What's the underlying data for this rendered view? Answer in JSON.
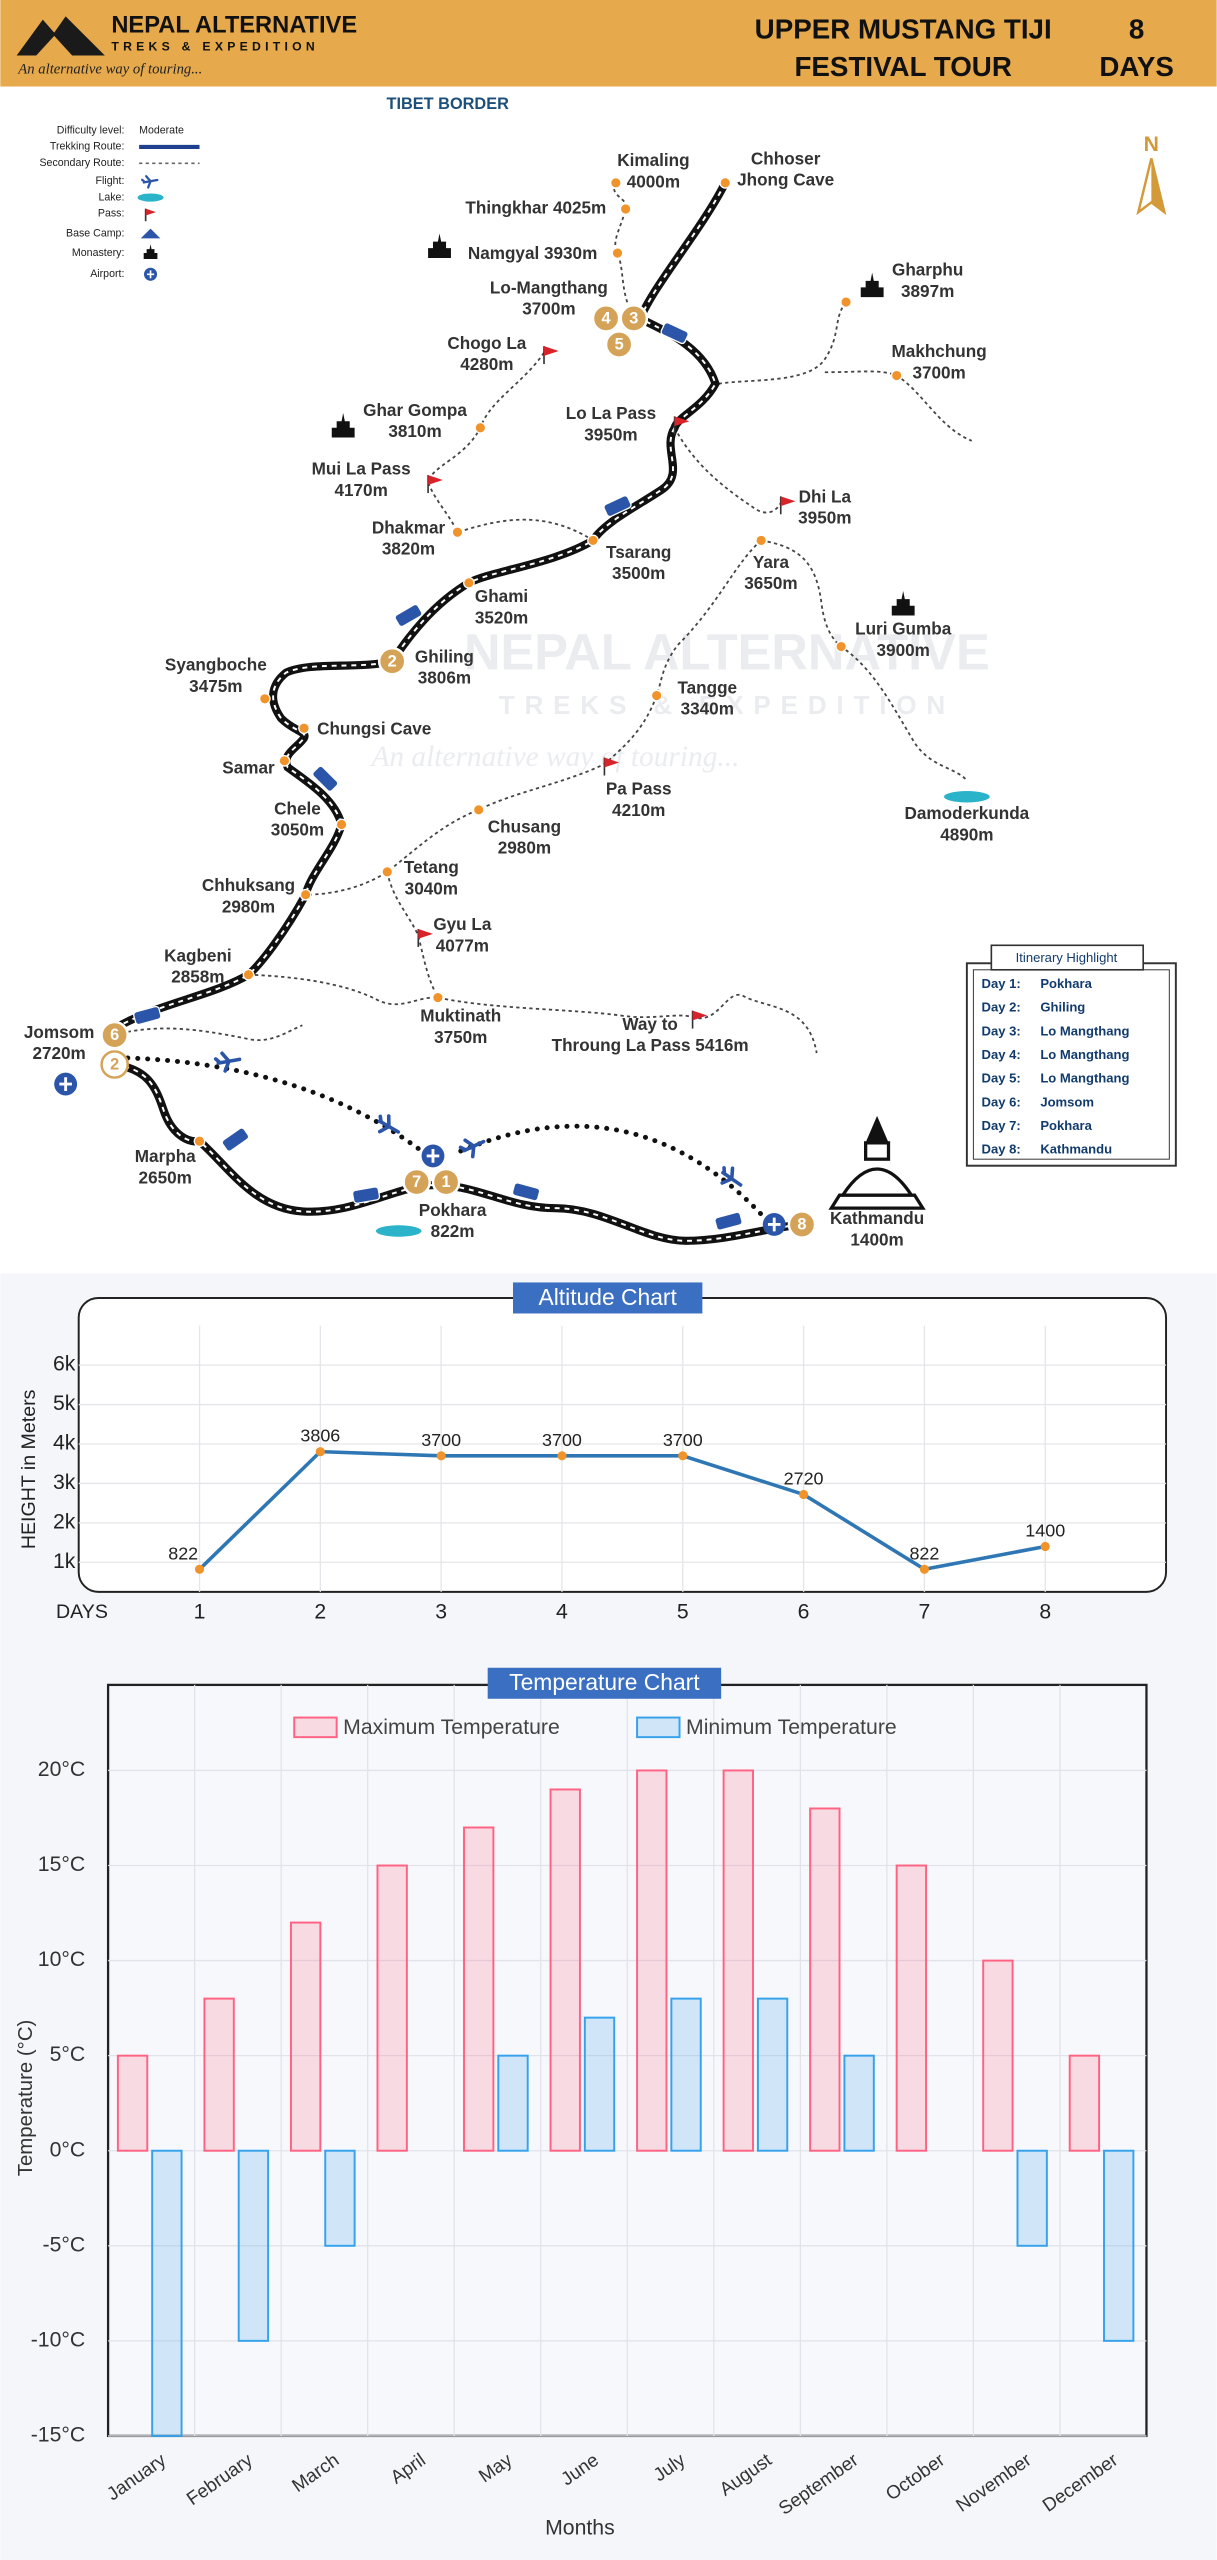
{
  "header": {
    "brand": "NEPAL ALTERNATIVE",
    "brand_sub": "TREKS & EXPEDITION",
    "tagline": "An alternative way of touring...",
    "title": [
      "UPPER MUSTANG TIJI",
      "FESTIVAL TOUR"
    ],
    "days": 8,
    "days_label": "DAYS"
  },
  "legend": {
    "items": [
      "Difficulty level:",
      "Trekking Route:",
      "Secondary Route:",
      "Flight:",
      "Lake:",
      "Pass:",
      "Base Camp:",
      "Monastery:",
      "Airport:"
    ],
    "difficulty": "Moderate"
  },
  "map": {
    "border_label": "TIBET BORDER",
    "compass": "N",
    "watermark": [
      "NEPAL ALTERNATIVE",
      "TREKS & EXPEDITION",
      "An alternative way of touring..."
    ],
    "places": [
      {
        "lines": [
          "Kimaling",
          "4000m"
        ]
      },
      {
        "lines": [
          "Chhoser",
          "Jhong Cave"
        ]
      },
      {
        "lines": [
          "Thingkhar 4025m"
        ]
      },
      {
        "lines": [
          "Namgyal 3930m"
        ]
      },
      {
        "lines": [
          "Lo-Mangthang",
          "3700m"
        ]
      },
      {
        "lines": [
          "Gharphu",
          "3897m"
        ]
      },
      {
        "lines": [
          "Makhchung",
          "3700m"
        ]
      },
      {
        "lines": [
          "Chogo La",
          "4280m"
        ]
      },
      {
        "lines": [
          "Ghar Gompa",
          "3810m"
        ]
      },
      {
        "lines": [
          "Lo La Pass",
          "3950m"
        ]
      },
      {
        "lines": [
          "Mui La Pass",
          "4170m"
        ]
      },
      {
        "lines": [
          "Dhi La",
          "3950m"
        ]
      },
      {
        "lines": [
          "Dhakmar",
          "3820m"
        ]
      },
      {
        "lines": [
          "Tsarang",
          "3500m"
        ]
      },
      {
        "lines": [
          "Yara",
          "3650m"
        ]
      },
      {
        "lines": [
          "Ghami",
          "3520m"
        ]
      },
      {
        "lines": [
          "Luri Gumba",
          "3900m"
        ]
      },
      {
        "lines": [
          "Ghiling",
          "3806m"
        ]
      },
      {
        "lines": [
          "Syangboche",
          "3475m"
        ]
      },
      {
        "lines": [
          "Tangge",
          "3340m"
        ]
      },
      {
        "lines": [
          "Chungsi Cave"
        ]
      },
      {
        "lines": [
          "Samar"
        ]
      },
      {
        "lines": [
          "Pa Pass",
          "4210m"
        ]
      },
      {
        "lines": [
          "Damoderkunda",
          "4890m"
        ]
      },
      {
        "lines": [
          "Chele",
          "3050m"
        ]
      },
      {
        "lines": [
          "Chusang",
          "2980m"
        ]
      },
      {
        "lines": [
          "Tetang",
          "3040m"
        ]
      },
      {
        "lines": [
          "Chhuksang",
          "2980m"
        ]
      },
      {
        "lines": [
          "Gyu La",
          "4077m"
        ]
      },
      {
        "lines": [
          "Kagbeni",
          "2858m"
        ]
      },
      {
        "lines": [
          "Muktinath",
          "3750m"
        ]
      },
      {
        "lines": [
          "Way to",
          "Throung La Pass 5416m"
        ]
      },
      {
        "lines": [
          "Jomsom",
          "2720m"
        ]
      },
      {
        "lines": [
          "Marpha",
          "2650m"
        ]
      },
      {
        "lines": [
          "Pokhara",
          "822m"
        ]
      },
      {
        "lines": [
          "Kathmandu",
          "1400m"
        ]
      }
    ],
    "day_markers": [
      4,
      3,
      5,
      2,
      6,
      2,
      7,
      1,
      8
    ]
  },
  "itinerary": {
    "title": "Itinerary Highlight",
    "rows": [
      [
        "Day 1:",
        "Pokhara"
      ],
      [
        "Day 2:",
        "Ghiling"
      ],
      [
        "Day 3:",
        "Lo Mangthang"
      ],
      [
        "Day 4:",
        "Lo Mangthang"
      ],
      [
        "Day 5:",
        "Lo Mangthang"
      ],
      [
        "Day 6:",
        "Jomsom"
      ],
      [
        "Day 7:",
        "Pokhara"
      ],
      [
        "Day 8:",
        "Kathmandu"
      ]
    ]
  },
  "chart_data": [
    {
      "type": "line",
      "title": "Altitude Chart",
      "y_label": "HEIGHT in Meters",
      "x_label": "DAYS",
      "x": [
        1,
        2,
        3,
        4,
        5,
        6,
        7,
        8
      ],
      "values": [
        822,
        3806,
        3700,
        3700,
        3700,
        2720,
        822,
        1400
      ],
      "color": "#2f77b4",
      "marker_color": "#f0932b",
      "xlim": [
        0,
        9
      ],
      "xticks": [
        1,
        2,
        3,
        4,
        5,
        6,
        7,
        8
      ],
      "ylim": [
        250,
        7000
      ],
      "yticks": [
        {
          "value": 1000,
          "label": "1k"
        },
        {
          "value": 2000,
          "label": "2k"
        },
        {
          "value": 3000,
          "label": "3k"
        },
        {
          "value": 4000,
          "label": "4k"
        },
        {
          "value": 5000,
          "label": "5k"
        },
        {
          "value": 6000,
          "label": "6k"
        }
      ],
      "grid": true,
      "data_labels": true
    },
    {
      "type": "bar",
      "title": "Temperature Chart",
      "y_label": "Temperature (°C)",
      "x_label": "Months",
      "categories": [
        "January",
        "February",
        "March",
        "April",
        "May",
        "June",
        "July",
        "August",
        "September",
        "October",
        "November",
        "December"
      ],
      "series": [
        {
          "name": "Maximum Temperature",
          "color": "#ff6384",
          "values": [
            5,
            8,
            12,
            15,
            17,
            19,
            20,
            20,
            18,
            15,
            10,
            5
          ]
        },
        {
          "name": "Minimum Temperature",
          "color": "#36a2eb",
          "values": [
            -15,
            -10,
            -5,
            0,
            5,
            7,
            8,
            8,
            5,
            0,
            -5,
            -10
          ]
        }
      ],
      "ylim": [
        -15,
        24.5
      ],
      "yticks": [
        {
          "value": -15,
          "label": "-15°C"
        },
        {
          "value": -10,
          "label": "-10°C"
        },
        {
          "value": -5,
          "label": "-5°C"
        },
        {
          "value": 0,
          "label": "0°C"
        },
        {
          "value": 5,
          "label": "5°C"
        },
        {
          "value": 10,
          "label": "10°C"
        },
        {
          "value": 15,
          "label": "15°C"
        },
        {
          "value": 20,
          "label": "20°C"
        }
      ],
      "grid": true,
      "legend": "top"
    }
  ]
}
